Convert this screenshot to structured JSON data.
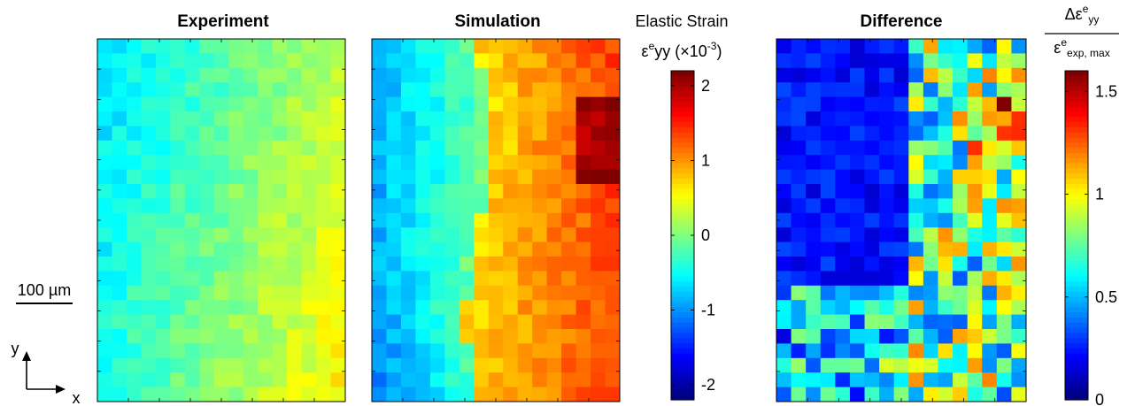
{
  "panels": [
    {
      "id": "experiment",
      "title": "Experiment",
      "kind": "exp"
    },
    {
      "id": "simulation",
      "title": "Simulation",
      "kind": "sim"
    },
    {
      "id": "difference",
      "title": "Difference",
      "kind": "diff"
    }
  ],
  "strain_colorbar": {
    "title_line1": "Elastic Strain",
    "symbol": "ε",
    "symbol_sup": "e",
    "symbol_rest": "yy (×10",
    "exp_sup": "-3",
    "close": ")",
    "ticks": [
      "2",
      "1",
      "0",
      "-1",
      "-2"
    ],
    "range": [
      -2.2,
      2.2
    ]
  },
  "diff_colorbar": {
    "numerator": "Δε",
    "numerator_sup": "e",
    "numerator_sub": "yy",
    "denominator": "ε",
    "denominator_sup": "e",
    "denominator_sub": "exp, max",
    "ticks": [
      "1.5",
      "1",
      "0.5",
      "0"
    ],
    "range": [
      0,
      1.6
    ]
  },
  "scale_bar": {
    "label": "100 µm"
  },
  "axes_indicator": {
    "y_label": "y",
    "x_label": "x"
  },
  "grid": {
    "cols": 17,
    "rows": 25
  },
  "colormap": "jet"
}
